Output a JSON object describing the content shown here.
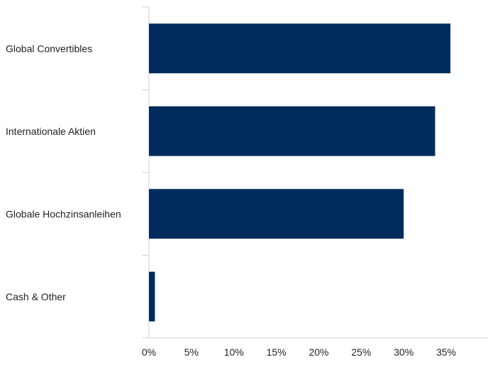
{
  "chart_data": {
    "type": "bar",
    "orientation": "horizontal",
    "categories": [
      "Global Convertibles",
      "Internationale Aktien",
      "Globale Hochzinsanleihen",
      "Cash & Other"
    ],
    "values": [
      35.5,
      33.7,
      30.0,
      0.7
    ],
    "xlim": [
      0,
      40
    ],
    "xticks": [
      0,
      5,
      10,
      15,
      20,
      25,
      30,
      35
    ],
    "xtick_labels": [
      "0%",
      "5%",
      "10%",
      "15%",
      "20%",
      "25%",
      "30%",
      "35%"
    ],
    "title": "",
    "xlabel": "",
    "ylabel": "",
    "grid": false,
    "legend": "none",
    "bar_color": "#002B5C",
    "axis_color": "#d0d0d0"
  }
}
